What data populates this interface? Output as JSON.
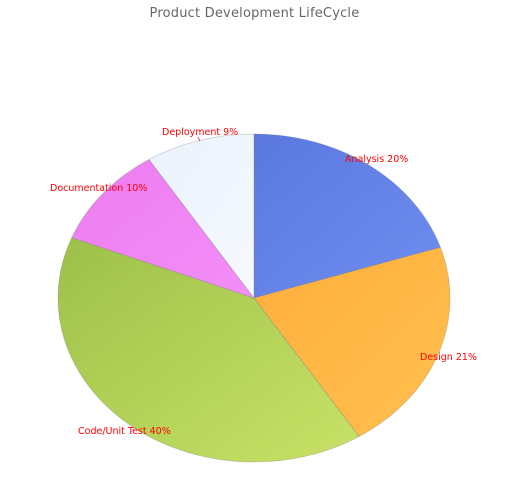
{
  "chart_data": {
    "type": "pie",
    "title": "Product Development LifeCycle",
    "label_color": "#ff0000",
    "slices": [
      {
        "label": "Analysis 20%",
        "value": 20,
        "color": "#5b78de",
        "color_light": "#6f8ef0"
      },
      {
        "label": "Design 21%",
        "value": 21,
        "color": "#ffae3c",
        "color_light": "#ffc04f"
      },
      {
        "label": "Code/Unit Test 40%",
        "value": 40,
        "color": "#9dc04a",
        "color_light": "#c8e266"
      },
      {
        "label": "Documentation 10%",
        "value": 10,
        "color": "#ec7cf0",
        "color_light": "#f48ef8"
      },
      {
        "label": "Deployment 9%",
        "value": 9,
        "color": "#eaf2fc",
        "color_light": "#f6faff"
      }
    ]
  }
}
